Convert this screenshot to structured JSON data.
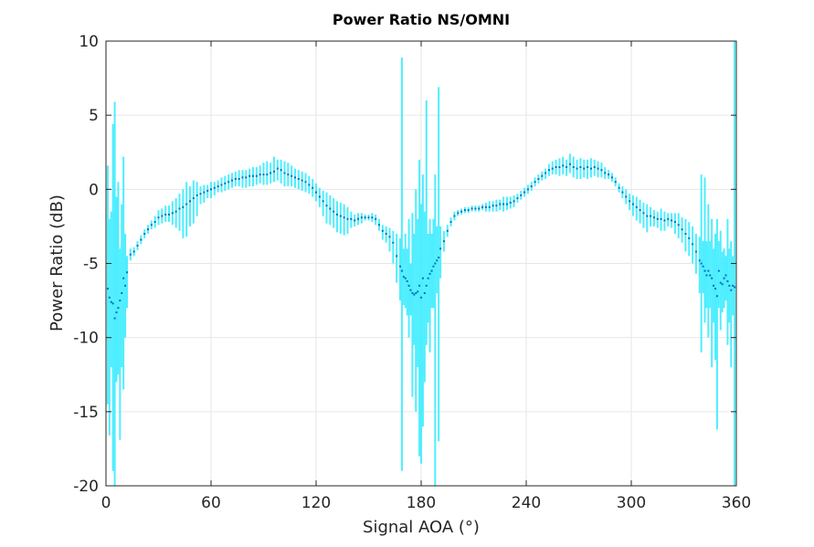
{
  "chart_data": {
    "type": "scatter",
    "title": "Power Ratio NS/OMNI",
    "xlabel": "Signal AOA (°)",
    "ylabel": "Power Ratio (dB)",
    "xlim": [
      0,
      360
    ],
    "ylim": [
      -20,
      10
    ],
    "xticks": [
      0,
      60,
      120,
      180,
      240,
      300,
      360
    ],
    "yticks": [
      -20,
      -15,
      -10,
      -5,
      0,
      5,
      10
    ],
    "xtick_labels": [
      "0",
      "60",
      "120",
      "180",
      "240",
      "300",
      "360"
    ],
    "ytick_labels": [
      "-20",
      "-15",
      "-10",
      "-5",
      "0",
      "5",
      "10"
    ],
    "grid": true,
    "marker_color": "#0072BD",
    "errorbar_color": "#4DEEFF",
    "points": [
      {
        "x": 1,
        "y": -6.7,
        "lo": -14.5,
        "hi": 1.6
      },
      {
        "x": 2,
        "y": -7.3,
        "lo": -16.6,
        "hi": -2.0
      },
      {
        "x": 3,
        "y": -7.6,
        "lo": -12.0,
        "hi": -1.5
      },
      {
        "x": 4,
        "y": -7.7,
        "lo": -19.0,
        "hi": 4.4
      },
      {
        "x": 5,
        "y": -8.7,
        "lo": -20.0,
        "hi": 5.9
      },
      {
        "x": 6,
        "y": -8.3,
        "lo": -13.0,
        "hi": -0.5
      },
      {
        "x": 7,
        "y": -8.0,
        "lo": -12.5,
        "hi": 0.5
      },
      {
        "x": 8,
        "y": -7.5,
        "lo": -16.9,
        "hi": -4.0
      },
      {
        "x": 9,
        "y": -7.0,
        "lo": -12.0,
        "hi": -1.0
      },
      {
        "x": 10,
        "y": -6.0,
        "lo": -13.5,
        "hi": 2.2
      },
      {
        "x": 11,
        "y": -6.5,
        "lo": -10.0,
        "hi": -3.0
      },
      {
        "x": 12,
        "y": -5.6,
        "lo": -8.0,
        "hi": -4.5
      },
      {
        "x": 14,
        "y": -4.4,
        "lo": -4.8,
        "hi": -4.0
      },
      {
        "x": 16,
        "y": -4.2,
        "lo": -4.5,
        "hi": -3.9
      },
      {
        "x": 18,
        "y": -3.8,
        "lo": -4.1,
        "hi": -3.5
      },
      {
        "x": 20,
        "y": -3.4,
        "lo": -3.7,
        "hi": -3.1
      },
      {
        "x": 22,
        "y": -3.0,
        "lo": -3.3,
        "hi": -2.7
      },
      {
        "x": 24,
        "y": -2.7,
        "lo": -3.0,
        "hi": -2.4
      },
      {
        "x": 26,
        "y": -2.4,
        "lo": -2.7,
        "hi": -2.1
      },
      {
        "x": 28,
        "y": -2.2,
        "lo": -2.6,
        "hi": -1.8
      },
      {
        "x": 30,
        "y": -1.9,
        "lo": -2.4,
        "hi": -1.4
      },
      {
        "x": 32,
        "y": -1.8,
        "lo": -2.3,
        "hi": -1.3
      },
      {
        "x": 34,
        "y": -1.7,
        "lo": -2.2,
        "hi": -1.1
      },
      {
        "x": 36,
        "y": -1.7,
        "lo": -2.2,
        "hi": -1.1
      },
      {
        "x": 38,
        "y": -1.6,
        "lo": -2.4,
        "hi": -0.8
      },
      {
        "x": 40,
        "y": -1.5,
        "lo": -2.6,
        "hi": -0.6
      },
      {
        "x": 42,
        "y": -1.3,
        "lo": -2.8,
        "hi": -0.3
      },
      {
        "x": 44,
        "y": -1.2,
        "lo": -3.3,
        "hi": 0.0
      },
      {
        "x": 46,
        "y": -1.0,
        "lo": -3.2,
        "hi": 0.5
      },
      {
        "x": 48,
        "y": -0.8,
        "lo": -2.5,
        "hi": 0.2
      },
      {
        "x": 50,
        "y": -0.6,
        "lo": -2.3,
        "hi": 0.6
      },
      {
        "x": 52,
        "y": -0.4,
        "lo": -1.8,
        "hi": 0.5
      },
      {
        "x": 54,
        "y": -0.3,
        "lo": -1.0,
        "hi": 0.2
      },
      {
        "x": 56,
        "y": -0.2,
        "lo": -0.9,
        "hi": 0.3
      },
      {
        "x": 58,
        "y": -0.1,
        "lo": -0.6,
        "hi": 0.3
      },
      {
        "x": 60,
        "y": 0.0,
        "lo": -0.6,
        "hi": 0.5
      },
      {
        "x": 62,
        "y": 0.1,
        "lo": -0.4,
        "hi": 0.5
      },
      {
        "x": 64,
        "y": 0.2,
        "lo": -0.2,
        "hi": 0.6
      },
      {
        "x": 66,
        "y": 0.3,
        "lo": -0.2,
        "hi": 0.8
      },
      {
        "x": 68,
        "y": 0.4,
        "lo": -0.1,
        "hi": 0.9
      },
      {
        "x": 70,
        "y": 0.5,
        "lo": 0.0,
        "hi": 1.0
      },
      {
        "x": 72,
        "y": 0.6,
        "lo": 0.1,
        "hi": 1.1
      },
      {
        "x": 74,
        "y": 0.7,
        "lo": 0.2,
        "hi": 1.2
      },
      {
        "x": 76,
        "y": 0.7,
        "lo": 0.2,
        "hi": 1.3
      },
      {
        "x": 78,
        "y": 0.8,
        "lo": 0.1,
        "hi": 1.3
      },
      {
        "x": 80,
        "y": 0.8,
        "lo": 0.1,
        "hi": 1.3
      },
      {
        "x": 82,
        "y": 0.9,
        "lo": 0.2,
        "hi": 1.4
      },
      {
        "x": 84,
        "y": 0.9,
        "lo": 0.2,
        "hi": 1.5
      },
      {
        "x": 86,
        "y": 0.9,
        "lo": 0.3,
        "hi": 1.5
      },
      {
        "x": 88,
        "y": 1.0,
        "lo": 0.4,
        "hi": 1.6
      },
      {
        "x": 90,
        "y": 1.0,
        "lo": 0.3,
        "hi": 1.8
      },
      {
        "x": 92,
        "y": 1.0,
        "lo": 0.3,
        "hi": 1.9
      },
      {
        "x": 94,
        "y": 1.1,
        "lo": 0.4,
        "hi": 1.8
      },
      {
        "x": 96,
        "y": 1.2,
        "lo": 0.5,
        "hi": 2.2
      },
      {
        "x": 98,
        "y": 1.4,
        "lo": 0.6,
        "hi": 2.0
      },
      {
        "x": 100,
        "y": 1.3,
        "lo": 0.4,
        "hi": 2.0
      },
      {
        "x": 102,
        "y": 1.1,
        "lo": 0.2,
        "hi": 1.9
      },
      {
        "x": 104,
        "y": 1.0,
        "lo": 0.2,
        "hi": 1.8
      },
      {
        "x": 106,
        "y": 0.9,
        "lo": 0.2,
        "hi": 1.6
      },
      {
        "x": 108,
        "y": 0.8,
        "lo": 0.1,
        "hi": 1.4
      },
      {
        "x": 110,
        "y": 0.7,
        "lo": 0.0,
        "hi": 1.3
      },
      {
        "x": 112,
        "y": 0.6,
        "lo": -0.1,
        "hi": 1.2
      },
      {
        "x": 114,
        "y": 0.5,
        "lo": -0.2,
        "hi": 1.1
      },
      {
        "x": 116,
        "y": 0.3,
        "lo": -0.3,
        "hi": 0.9
      },
      {
        "x": 118,
        "y": 0.1,
        "lo": -0.5,
        "hi": 0.7
      },
      {
        "x": 120,
        "y": -0.2,
        "lo": -0.8,
        "hi": 0.4
      },
      {
        "x": 122,
        "y": -0.5,
        "lo": -1.2,
        "hi": 0.1
      },
      {
        "x": 124,
        "y": -0.8,
        "lo": -1.8,
        "hi": -0.1
      },
      {
        "x": 126,
        "y": -1.1,
        "lo": -2.3,
        "hi": -0.2
      },
      {
        "x": 128,
        "y": -1.3,
        "lo": -2.4,
        "hi": -0.4
      },
      {
        "x": 130,
        "y": -1.5,
        "lo": -2.6,
        "hi": -0.6
      },
      {
        "x": 132,
        "y": -1.7,
        "lo": -2.9,
        "hi": -0.8
      },
      {
        "x": 134,
        "y": -1.8,
        "lo": -3.0,
        "hi": -0.9
      },
      {
        "x": 136,
        "y": -1.9,
        "lo": -3.1,
        "hi": -1.0
      },
      {
        "x": 138,
        "y": -2.0,
        "lo": -3.0,
        "hi": -1.2
      },
      {
        "x": 140,
        "y": -2.0,
        "lo": -2.6,
        "hi": -1.5
      },
      {
        "x": 142,
        "y": -2.1,
        "lo": -2.5,
        "hi": -1.7
      },
      {
        "x": 144,
        "y": -2.0,
        "lo": -2.4,
        "hi": -1.6
      },
      {
        "x": 146,
        "y": -1.9,
        "lo": -2.3,
        "hi": -1.6
      },
      {
        "x": 148,
        "y": -1.9,
        "lo": -2.1,
        "hi": -1.7
      },
      {
        "x": 150,
        "y": -1.9,
        "lo": -2.1,
        "hi": -1.7
      },
      {
        "x": 152,
        "y": -1.9,
        "lo": -2.2,
        "hi": -1.6
      },
      {
        "x": 154,
        "y": -2.0,
        "lo": -2.4,
        "hi": -1.7
      },
      {
        "x": 156,
        "y": -2.4,
        "lo": -2.8,
        "hi": -2.0
      },
      {
        "x": 158,
        "y": -2.8,
        "lo": -3.4,
        "hi": -2.4
      },
      {
        "x": 160,
        "y": -3.0,
        "lo": -3.6,
        "hi": -2.5
      },
      {
        "x": 162,
        "y": -3.2,
        "lo": -4.2,
        "hi": -2.6
      },
      {
        "x": 164,
        "y": -3.6,
        "lo": -5.0,
        "hi": -2.8
      },
      {
        "x": 166,
        "y": -4.5,
        "lo": -6.3,
        "hi": -3.0
      },
      {
        "x": 168,
        "y": -5.2,
        "lo": -7.5,
        "hi": -3.3
      },
      {
        "x": 169,
        "y": -5.5,
        "lo": -19.0,
        "hi": 8.9
      },
      {
        "x": 170,
        "y": -5.9,
        "lo": -7.8,
        "hi": -4.0
      },
      {
        "x": 171,
        "y": -6.0,
        "lo": -8.0,
        "hi": -3.0
      },
      {
        "x": 172,
        "y": -6.2,
        "lo": -8.5,
        "hi": -4.0
      },
      {
        "x": 173,
        "y": -6.5,
        "lo": -10.0,
        "hi": -2.0
      },
      {
        "x": 174,
        "y": -6.8,
        "lo": -8.5,
        "hi": -5.0
      },
      {
        "x": 175,
        "y": -7.0,
        "lo": -14.0,
        "hi": -1.6
      },
      {
        "x": 176,
        "y": -7.1,
        "lo": -10.5,
        "hi": -3.0
      },
      {
        "x": 177,
        "y": -7.0,
        "lo": -15.0,
        "hi": 0.0
      },
      {
        "x": 178,
        "y": -6.9,
        "lo": -12.0,
        "hi": -2.0
      },
      {
        "x": 179,
        "y": -6.5,
        "lo": -18.0,
        "hi": 2.0
      },
      {
        "x": 180,
        "y": -7.3,
        "lo": -18.5,
        "hi": -1.0
      },
      {
        "x": 181,
        "y": -6.0,
        "lo": -16.0,
        "hi": 1.0
      },
      {
        "x": 182,
        "y": -7.0,
        "lo": -13.0,
        "hi": -1.5
      },
      {
        "x": 183,
        "y": -6.5,
        "lo": -10.5,
        "hi": 6.0
      },
      {
        "x": 184,
        "y": -6.0,
        "lo": -9.0,
        "hi": -3.0
      },
      {
        "x": 185,
        "y": -5.7,
        "lo": -11.0,
        "hi": -2.0
      },
      {
        "x": 186,
        "y": -5.5,
        "lo": -8.0,
        "hi": -3.0
      },
      {
        "x": 187,
        "y": -5.2,
        "lo": -8.0,
        "hi": -2.0
      },
      {
        "x": 188,
        "y": -5.0,
        "lo": -20.0,
        "hi": 1.0
      },
      {
        "x": 189,
        "y": -4.8,
        "lo": -7.0,
        "hi": -2.5
      },
      {
        "x": 190,
        "y": -4.6,
        "lo": -17.0,
        "hi": 6.9
      },
      {
        "x": 191,
        "y": -4.0,
        "lo": -6.0,
        "hi": -2.5
      },
      {
        "x": 193,
        "y": -3.5,
        "lo": -4.2,
        "hi": -2.8
      },
      {
        "x": 195,
        "y": -2.8,
        "lo": -3.2,
        "hi": -2.4
      },
      {
        "x": 197,
        "y": -2.2,
        "lo": -2.5,
        "hi": -1.9
      },
      {
        "x": 199,
        "y": -1.8,
        "lo": -2.1,
        "hi": -1.5
      },
      {
        "x": 201,
        "y": -1.6,
        "lo": -1.8,
        "hi": -1.4
      },
      {
        "x": 203,
        "y": -1.5,
        "lo": -1.7,
        "hi": -1.3
      },
      {
        "x": 205,
        "y": -1.4,
        "lo": -1.6,
        "hi": -1.2
      },
      {
        "x": 207,
        "y": -1.4,
        "lo": -1.6,
        "hi": -1.2
      },
      {
        "x": 209,
        "y": -1.3,
        "lo": -1.5,
        "hi": -1.1
      },
      {
        "x": 211,
        "y": -1.3,
        "lo": -1.5,
        "hi": -1.1
      },
      {
        "x": 213,
        "y": -1.3,
        "lo": -1.5,
        "hi": -1.1
      },
      {
        "x": 215,
        "y": -1.2,
        "lo": -1.4,
        "hi": -1.0
      },
      {
        "x": 217,
        "y": -1.2,
        "lo": -1.5,
        "hi": -0.9
      },
      {
        "x": 219,
        "y": -1.2,
        "lo": -1.5,
        "hi": -0.8
      },
      {
        "x": 221,
        "y": -1.1,
        "lo": -1.5,
        "hi": -0.8
      },
      {
        "x": 223,
        "y": -1.1,
        "lo": -1.5,
        "hi": -0.7
      },
      {
        "x": 225,
        "y": -1.0,
        "lo": -1.4,
        "hi": -0.7
      },
      {
        "x": 227,
        "y": -1.0,
        "lo": -1.5,
        "hi": -0.5
      },
      {
        "x": 229,
        "y": -1.0,
        "lo": -1.4,
        "hi": -0.5
      },
      {
        "x": 231,
        "y": -0.9,
        "lo": -1.3,
        "hi": -0.5
      },
      {
        "x": 233,
        "y": -0.8,
        "lo": -1.2,
        "hi": -0.4
      },
      {
        "x": 235,
        "y": -0.6,
        "lo": -0.9,
        "hi": -0.3
      },
      {
        "x": 237,
        "y": -0.4,
        "lo": -0.7,
        "hi": -0.1
      },
      {
        "x": 239,
        "y": -0.2,
        "lo": -0.5,
        "hi": 0.1
      },
      {
        "x": 241,
        "y": 0.0,
        "lo": -0.3,
        "hi": 0.3
      },
      {
        "x": 243,
        "y": 0.2,
        "lo": -0.1,
        "hi": 0.5
      },
      {
        "x": 245,
        "y": 0.5,
        "lo": 0.2,
        "hi": 0.8
      },
      {
        "x": 247,
        "y": 0.7,
        "lo": 0.4,
        "hi": 1.0
      },
      {
        "x": 249,
        "y": 0.9,
        "lo": 0.6,
        "hi": 1.2
      },
      {
        "x": 251,
        "y": 1.1,
        "lo": 0.7,
        "hi": 1.4
      },
      {
        "x": 253,
        "y": 1.3,
        "lo": 0.9,
        "hi": 1.7
      },
      {
        "x": 255,
        "y": 1.4,
        "lo": 1.0,
        "hi": 1.9
      },
      {
        "x": 257,
        "y": 1.5,
        "lo": 1.0,
        "hi": 2.0
      },
      {
        "x": 259,
        "y": 1.5,
        "lo": 0.9,
        "hi": 2.1
      },
      {
        "x": 261,
        "y": 1.6,
        "lo": 1.0,
        "hi": 2.2
      },
      {
        "x": 263,
        "y": 1.5,
        "lo": 0.9,
        "hi": 2.0
      },
      {
        "x": 265,
        "y": 1.7,
        "lo": 1.1,
        "hi": 2.4
      },
      {
        "x": 267,
        "y": 1.5,
        "lo": 0.8,
        "hi": 2.2
      },
      {
        "x": 269,
        "y": 1.4,
        "lo": 0.7,
        "hi": 2.0
      },
      {
        "x": 271,
        "y": 1.5,
        "lo": 0.7,
        "hi": 2.1
      },
      {
        "x": 273,
        "y": 1.4,
        "lo": 0.8,
        "hi": 2.0
      },
      {
        "x": 275,
        "y": 1.5,
        "lo": 0.7,
        "hi": 2.0
      },
      {
        "x": 277,
        "y": 1.4,
        "lo": 0.8,
        "hi": 2.1
      },
      {
        "x": 279,
        "y": 1.5,
        "lo": 0.9,
        "hi": 2.0
      },
      {
        "x": 281,
        "y": 1.4,
        "lo": 0.8,
        "hi": 1.9
      },
      {
        "x": 283,
        "y": 1.3,
        "lo": 0.8,
        "hi": 1.8
      },
      {
        "x": 285,
        "y": 1.1,
        "lo": 0.7,
        "hi": 1.5
      },
      {
        "x": 287,
        "y": 1.0,
        "lo": 0.7,
        "hi": 1.3
      },
      {
        "x": 289,
        "y": 0.8,
        "lo": 0.5,
        "hi": 1.1
      },
      {
        "x": 291,
        "y": 0.5,
        "lo": 0.2,
        "hi": 0.8
      },
      {
        "x": 293,
        "y": 0.1,
        "lo": -0.2,
        "hi": 0.4
      },
      {
        "x": 295,
        "y": -0.2,
        "lo": -0.6,
        "hi": 0.2
      },
      {
        "x": 297,
        "y": -0.5,
        "lo": -1.0,
        "hi": 0.0
      },
      {
        "x": 299,
        "y": -0.8,
        "lo": -1.4,
        "hi": -0.3
      },
      {
        "x": 301,
        "y": -1.0,
        "lo": -1.8,
        "hi": -0.4
      },
      {
        "x": 303,
        "y": -1.2,
        "lo": -2.1,
        "hi": -0.5
      },
      {
        "x": 305,
        "y": -1.4,
        "lo": -2.3,
        "hi": -0.7
      },
      {
        "x": 307,
        "y": -1.6,
        "lo": -2.6,
        "hi": -0.9
      },
      {
        "x": 309,
        "y": -1.8,
        "lo": -2.9,
        "hi": -1.0
      },
      {
        "x": 311,
        "y": -1.8,
        "lo": -2.5,
        "hi": -1.2
      },
      {
        "x": 313,
        "y": -1.9,
        "lo": -2.5,
        "hi": -1.4
      },
      {
        "x": 315,
        "y": -2.0,
        "lo": -2.6,
        "hi": -1.5
      },
      {
        "x": 317,
        "y": -2.0,
        "lo": -2.8,
        "hi": -1.3
      },
      {
        "x": 319,
        "y": -2.1,
        "lo": -2.8,
        "hi": -1.5
      },
      {
        "x": 321,
        "y": -2.0,
        "lo": -2.5,
        "hi": -1.6
      },
      {
        "x": 323,
        "y": -2.1,
        "lo": -2.6,
        "hi": -1.6
      },
      {
        "x": 325,
        "y": -2.2,
        "lo": -3.0,
        "hi": -1.6
      },
      {
        "x": 327,
        "y": -2.4,
        "lo": -3.3,
        "hi": -1.6
      },
      {
        "x": 329,
        "y": -2.7,
        "lo": -3.6,
        "hi": -1.9
      },
      {
        "x": 331,
        "y": -3.0,
        "lo": -4.2,
        "hi": -2.0
      },
      {
        "x": 333,
        "y": -3.3,
        "lo": -4.5,
        "hi": -2.2
      },
      {
        "x": 335,
        "y": -3.7,
        "lo": -5.0,
        "hi": -2.5
      },
      {
        "x": 337,
        "y": -4.2,
        "lo": -5.7,
        "hi": -3.0
      },
      {
        "x": 339,
        "y": -4.8,
        "lo": -7.0,
        "hi": -3.2
      },
      {
        "x": 340,
        "y": -5.0,
        "lo": -11.0,
        "hi": 1.0
      },
      {
        "x": 341,
        "y": -5.2,
        "lo": -7.0,
        "hi": -3.5
      },
      {
        "x": 342,
        "y": -5.5,
        "lo": -9.0,
        "hi": 0.8
      },
      {
        "x": 343,
        "y": -5.8,
        "lo": -8.0,
        "hi": -3.5
      },
      {
        "x": 344,
        "y": -5.5,
        "lo": -10.0,
        "hi": -1.0
      },
      {
        "x": 345,
        "y": -5.8,
        "lo": -8.0,
        "hi": -3.5
      },
      {
        "x": 346,
        "y": -6.0,
        "lo": -12.0,
        "hi": -2.0
      },
      {
        "x": 347,
        "y": -6.5,
        "lo": -9.0,
        "hi": -4.0
      },
      {
        "x": 348,
        "y": -6.7,
        "lo": -11.5,
        "hi": -3.0
      },
      {
        "x": 349,
        "y": -7.2,
        "lo": -16.2,
        "hi": -2.0
      },
      {
        "x": 350,
        "y": -5.5,
        "lo": -8.0,
        "hi": -3.5
      },
      {
        "x": 351,
        "y": -6.3,
        "lo": -9.5,
        "hi": -2.8
      },
      {
        "x": 352,
        "y": -6.4,
        "lo": -8.3,
        "hi": -4.2
      },
      {
        "x": 353,
        "y": -6.0,
        "lo": -8.0,
        "hi": -4.0
      },
      {
        "x": 354,
        "y": -5.8,
        "lo": -7.5,
        "hi": -4.5
      },
      {
        "x": 355,
        "y": -6.2,
        "lo": -10.5,
        "hi": -2.0
      },
      {
        "x": 356,
        "y": -6.5,
        "lo": -9.0,
        "hi": -4.0
      },
      {
        "x": 357,
        "y": -6.8,
        "lo": -12.0,
        "hi": -3.5
      },
      {
        "x": 358,
        "y": -6.5,
        "lo": -8.5,
        "hi": -4.5
      },
      {
        "x": 359,
        "y": -6.6,
        "lo": -20.0,
        "hi": 10.0
      }
    ]
  }
}
